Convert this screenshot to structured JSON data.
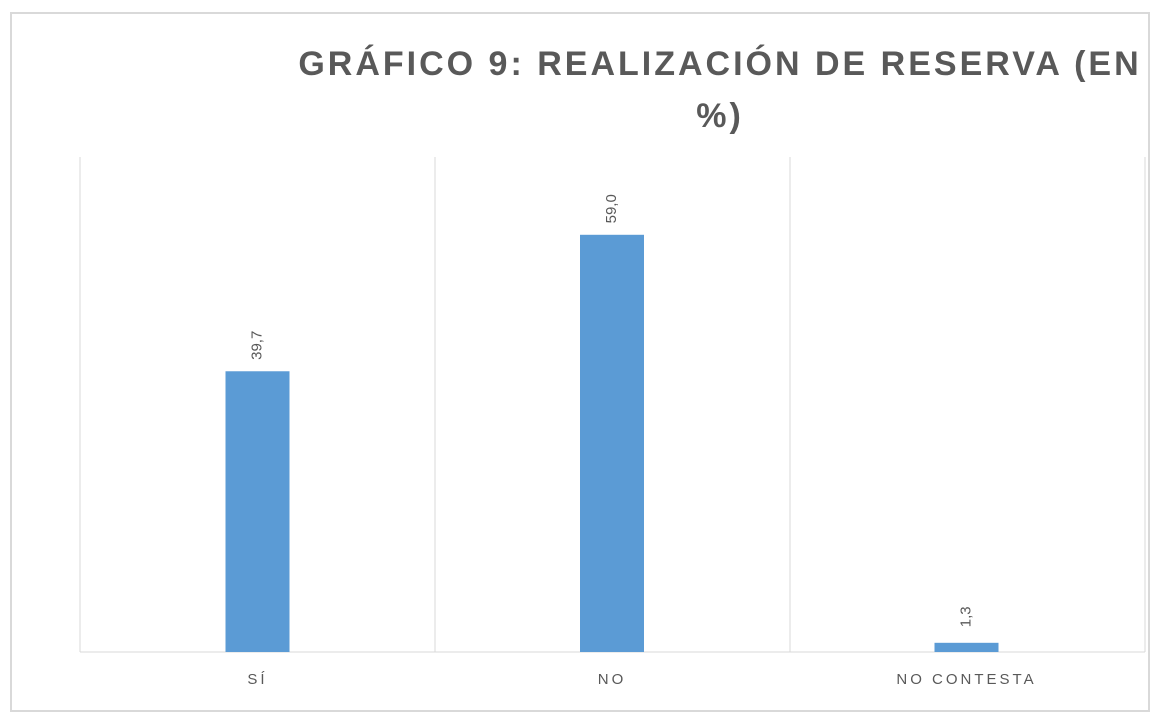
{
  "chart_data": {
    "type": "bar",
    "title": "GRÁFICO 9: REALIZACIÓN DE RESERVA (EN %)",
    "categories": [
      "SÍ",
      "NO",
      "NO CONTESTA"
    ],
    "values": [
      39.7,
      59.0,
      1.3
    ],
    "value_labels": [
      "39,7",
      "59,0",
      "1,3"
    ],
    "color": "#5b9bd5",
    "ylim": [
      0,
      70
    ]
  }
}
